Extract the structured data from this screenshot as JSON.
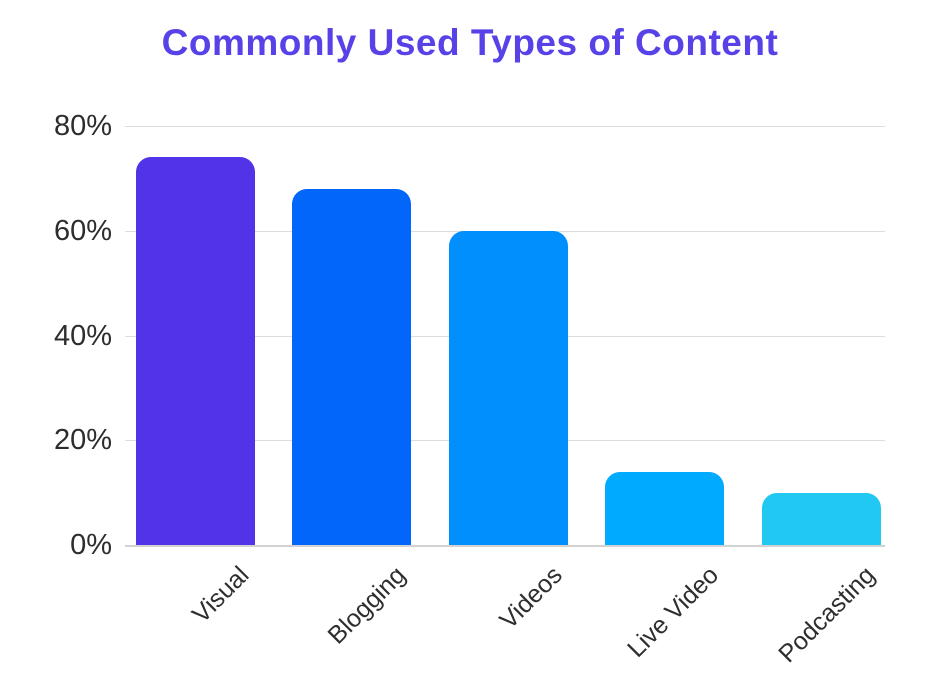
{
  "title": "Commonly Used Types of Content",
  "chart_data": {
    "type": "bar",
    "categories": [
      "Visual",
      "Blogging",
      "Videos",
      "Live Video",
      "Podcasting"
    ],
    "values": [
      74,
      68,
      60,
      14,
      10
    ],
    "bar_colors": [
      "#5233e8",
      "#0266fb",
      "#008ffd",
      "#00aaff",
      "#20c8f2"
    ],
    "title": "Commonly Used Types of Content",
    "xlabel": "",
    "ylabel": "",
    "ylim": [
      0,
      80
    ],
    "ytick_values": [
      0,
      20,
      40,
      60,
      80
    ],
    "ytick_labels": [
      "0%",
      "20%",
      "40%",
      "60%",
      "80%"
    ],
    "grid": true,
    "legend": false,
    "x_label_rotation_deg": -45
  },
  "colors": {
    "background": "#ffffff",
    "title_text": "#5742e8",
    "grid_line": "#dcdcdc",
    "axis_line": "#d2d2d2",
    "tick_text": "#2d2d2d"
  }
}
